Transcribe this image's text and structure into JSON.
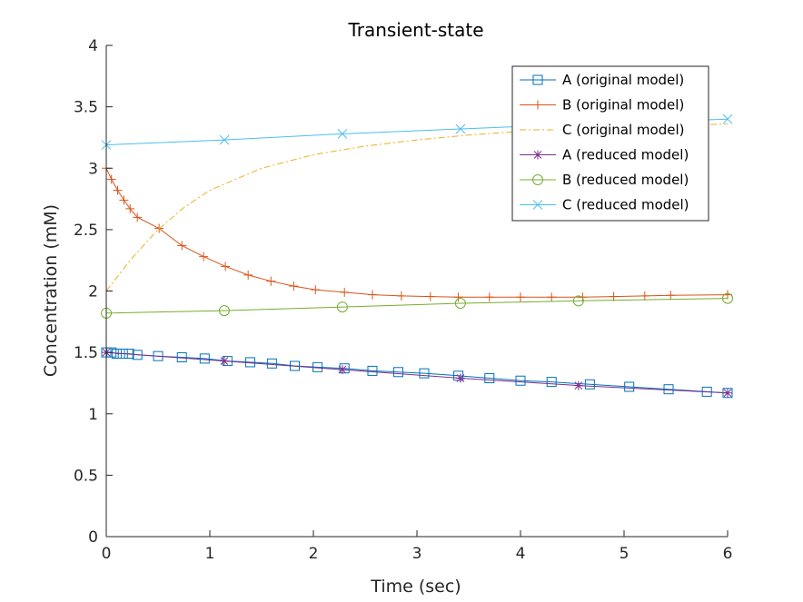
{
  "chart_data": {
    "type": "line",
    "title": "Transient-state",
    "xlabel": "Time (sec)",
    "ylabel": "Concentration (mM)",
    "xlim": [
      0,
      6
    ],
    "ylim": [
      0,
      4
    ],
    "xticks": [
      "0",
      "1",
      "2",
      "3",
      "4",
      "5",
      "6"
    ],
    "yticks": [
      "0",
      "0.5",
      "1",
      "1.5",
      "2",
      "2.5",
      "3",
      "3.5",
      "4"
    ],
    "grid": false,
    "legend_position": "top-right",
    "series": [
      {
        "name": "A (original model)",
        "color": "#0072BD",
        "line_style": "solid",
        "marker": "square",
        "x": [
          0,
          0.05,
          0.1,
          0.16,
          0.22,
          0.3,
          0.5,
          0.73,
          0.95,
          1.17,
          1.39,
          1.6,
          1.82,
          2.04,
          2.3,
          2.57,
          2.82,
          3.07,
          3.4,
          3.7,
          4.0,
          4.3,
          4.67,
          5.05,
          5.43,
          5.8,
          6.0
        ],
        "y": [
          1.5,
          1.5,
          1.49,
          1.49,
          1.49,
          1.48,
          1.47,
          1.46,
          1.45,
          1.43,
          1.42,
          1.41,
          1.39,
          1.38,
          1.37,
          1.35,
          1.34,
          1.33,
          1.31,
          1.29,
          1.27,
          1.26,
          1.24,
          1.22,
          1.2,
          1.18,
          1.17
        ]
      },
      {
        "name": "B (original model)",
        "color": "#D95319",
        "line_style": "solid",
        "marker": "plus",
        "x": [
          0,
          0.05,
          0.11,
          0.17,
          0.23,
          0.3,
          0.51,
          0.73,
          0.94,
          1.15,
          1.37,
          1.59,
          1.81,
          2.02,
          2.3,
          2.57,
          2.85,
          3.13,
          3.4,
          3.7,
          4.0,
          4.3,
          4.6,
          4.9,
          5.2,
          5.45,
          6.0
        ],
        "y": [
          3.0,
          2.91,
          2.82,
          2.74,
          2.67,
          2.6,
          2.51,
          2.37,
          2.28,
          2.2,
          2.13,
          2.08,
          2.04,
          2.01,
          1.99,
          1.97,
          1.96,
          1.955,
          1.95,
          1.95,
          1.95,
          1.95,
          1.95,
          1.955,
          1.96,
          1.965,
          1.97
        ]
      },
      {
        "name": "C (original model)",
        "color": "#EDB120",
        "line_style": "dashdot",
        "marker": "none",
        "x": [
          0,
          0.25,
          0.5,
          0.75,
          1.0,
          1.5,
          2.0,
          2.5,
          3.0,
          3.5,
          4.0,
          4.5,
          5.0,
          5.5,
          6.0
        ],
        "y": [
          2.0,
          2.27,
          2.5,
          2.68,
          2.82,
          3.0,
          3.11,
          3.18,
          3.23,
          3.27,
          3.3,
          3.32,
          3.34,
          3.35,
          3.36
        ]
      },
      {
        "name": "A (reduced model)",
        "color": "#7E2F8E",
        "line_style": "solid",
        "marker": "asterisk",
        "x": [
          0,
          1.14,
          2.28,
          3.42,
          4.56,
          6.0
        ],
        "y": [
          1.5,
          1.43,
          1.36,
          1.29,
          1.23,
          1.17
        ]
      },
      {
        "name": "B (reduced model)",
        "color": "#77AC30",
        "line_style": "solid",
        "marker": "circle",
        "x": [
          0,
          1.14,
          2.28,
          3.42,
          4.56,
          6.0
        ],
        "y": [
          1.82,
          1.84,
          1.87,
          1.9,
          1.92,
          1.94
        ]
      },
      {
        "name": "C (reduced model)",
        "color": "#4DBEEE",
        "line_style": "solid",
        "marker": "x",
        "x": [
          0,
          1.14,
          2.28,
          3.42,
          4.56,
          6.0
        ],
        "y": [
          3.19,
          3.23,
          3.28,
          3.32,
          3.36,
          3.4
        ]
      }
    ]
  }
}
